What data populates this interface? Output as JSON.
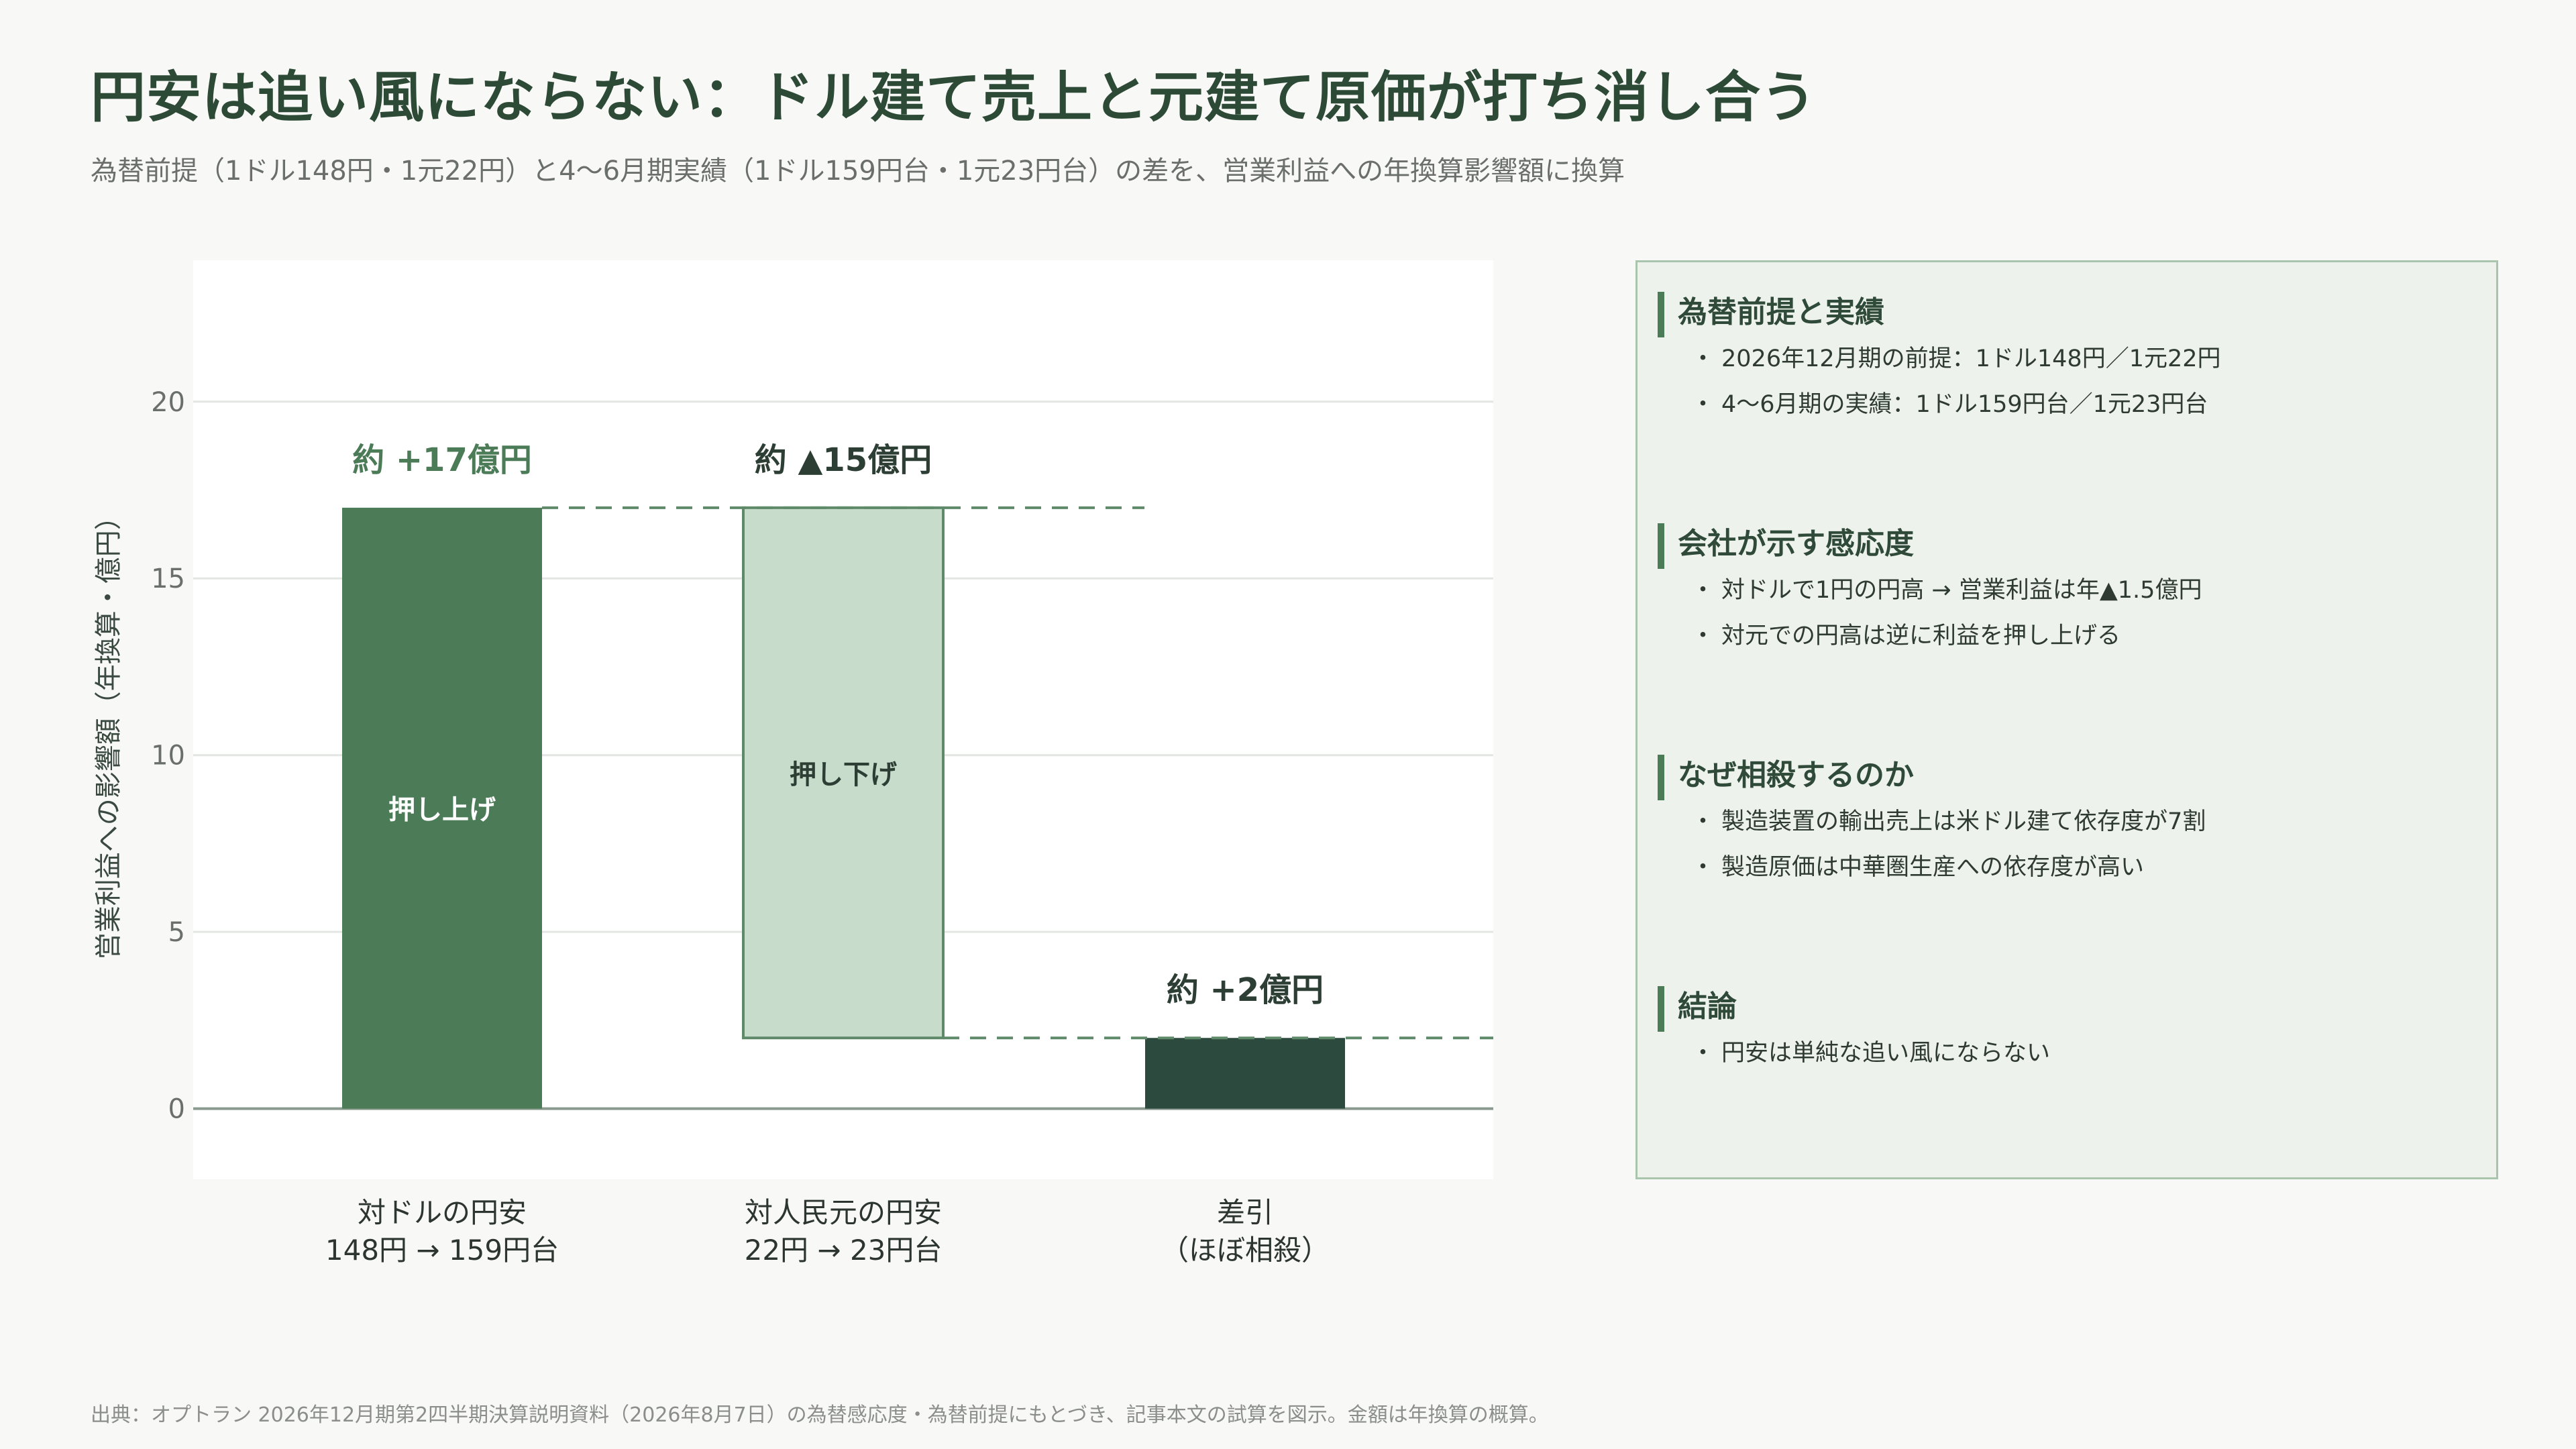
{
  "title": "円安は追い風にならない：ドル建て売上と元建て原価が打ち消し合う",
  "subtitle": "為替前提（1ドル148円・1元22円）と4〜6月期実績（1ドル159円台・1元23円台）の差を、営業利益への年換算影響額に換算",
  "chart_data": {
    "type": "bar",
    "subtype": "waterfall",
    "ylabel": "営業利益への影響額（年換算・億円）",
    "ylim": [
      -2,
      24
    ],
    "yticks": [
      0,
      5,
      10,
      15,
      20
    ],
    "grid": true,
    "bars": [
      {
        "category_line1": "対ドルの円安",
        "category_line2": "148円 → 159円台",
        "start": 0,
        "end": 17,
        "value_label": "約 +17億円",
        "inner_label": "押し上げ",
        "color": "#4b7c57"
      },
      {
        "category_line1": "対人民元の円安",
        "category_line2": "22円 → 23円台",
        "start": 17,
        "end": 2,
        "value_label": "約 ▲15億円",
        "inner_label": "押し下げ",
        "color": "#c8dccb"
      },
      {
        "category_line1": "差引",
        "category_line2": "（ほぼ相殺）",
        "start": 0,
        "end": 2,
        "value_label": "約 +2億円",
        "inner_label": "",
        "color": "#2d4a3f"
      }
    ]
  },
  "panel": {
    "sections": [
      {
        "heading": "為替前提と実績",
        "bullets": [
          "2026年12月期の前提：1ドル148円／1元22円",
          "4〜6月期の実績：1ドル159円台／1元23円台"
        ]
      },
      {
        "heading": "会社が示す感応度",
        "bullets": [
          "対ドルで1円の円高 → 営業利益は年▲1.5億円",
          "対元での円高は逆に利益を押し上げる"
        ]
      },
      {
        "heading": "なぜ相殺するのか",
        "bullets": [
          "製造装置の輸出売上は米ドル建て依存度が7割",
          "製造原価は中華圏生産への依存度が高い"
        ]
      },
      {
        "heading": "結論",
        "bullets": [
          "円安は単純な追い風にならない"
        ]
      }
    ],
    "bullet_mark": "・"
  },
  "footnote": "出典：オプトラン 2026年12月期第2四半期決算説明資料（2026年8月7日）の為替感応度・為替前提にもとづき、記事本文の試算を図示。金額は年換算の概算。"
}
